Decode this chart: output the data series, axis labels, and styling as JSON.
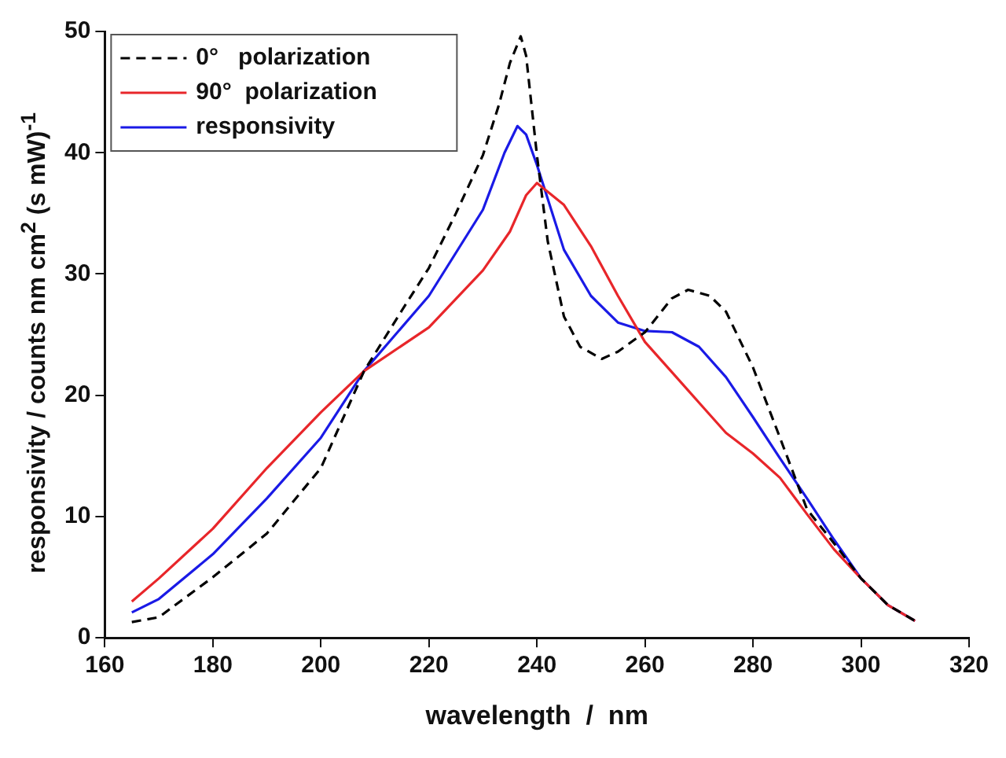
{
  "chart_data": {
    "type": "line",
    "xlabel": "wavelength  /  nm",
    "ylabel": "responsivity  /  counts nm cm$^{2}$ (s mW)$^{-1}$",
    "xlim": [
      160,
      320
    ],
    "xticks": [
      160,
      180,
      200,
      220,
      240,
      260,
      280,
      300,
      320
    ],
    "ylim": [
      0,
      50
    ],
    "yticks": [
      0,
      10,
      20,
      30,
      40,
      50
    ],
    "grid": false,
    "legend": "top left",
    "marker": "none",
    "series": [
      {
        "name": "0°   polarization",
        "color": "#000000",
        "line_style": "dashed",
        "x": [
          165,
          170,
          180,
          190,
          200,
          208,
          215,
          220,
          225,
          230,
          233,
          235,
          237,
          238,
          240,
          242,
          245,
          248,
          252,
          255,
          260,
          265,
          268,
          272,
          275,
          280,
          285,
          290,
          295,
          300,
          305,
          310
        ],
        "values": [
          1.3,
          1.7,
          5,
          8.6,
          14,
          22,
          27,
          30.5,
          35,
          39.8,
          44,
          47.4,
          49.6,
          48,
          39.8,
          32.7,
          26.5,
          24,
          23,
          23.6,
          25.2,
          28,
          28.7,
          28.2,
          26.9,
          22.3,
          16.5,
          10.6,
          7.8,
          4.9,
          2.7,
          1.4
        ]
      },
      {
        "name": "90°  polarization",
        "color": "#e8262a",
        "line_style": "solid",
        "x": [
          165,
          170,
          180,
          190,
          200,
          208,
          220,
          230,
          235,
          238,
          240,
          245,
          250,
          255,
          260,
          265,
          270,
          275,
          280,
          285,
          290,
          295,
          300,
          305,
          310
        ],
        "values": [
          3,
          4.9,
          9,
          14,
          18.6,
          22,
          25.6,
          30.3,
          33.5,
          36.5,
          37.5,
          35.7,
          32.3,
          28.2,
          24.4,
          21.9,
          19.4,
          16.9,
          15.2,
          13.2,
          10.2,
          7.3,
          4.9,
          2.7,
          1.4
        ]
      },
      {
        "name": "responsivity",
        "color": "#1a1ae6",
        "line_style": "solid",
        "x": [
          165,
          170,
          180,
          190,
          200,
          208,
          220,
          230,
          234,
          236.4,
          238,
          240,
          245,
          250,
          255,
          260,
          265,
          270,
          275,
          280,
          285,
          290,
          295,
          300,
          305,
          310
        ],
        "values": [
          2.1,
          3.2,
          6.9,
          11.5,
          16.5,
          22,
          28.2,
          35.3,
          40,
          42.2,
          41.5,
          39,
          32,
          28.2,
          26,
          25.3,
          25.2,
          24,
          21.5,
          18.2,
          14.8,
          11.5,
          8.1,
          4.9,
          2.7,
          1.4
        ]
      }
    ]
  }
}
